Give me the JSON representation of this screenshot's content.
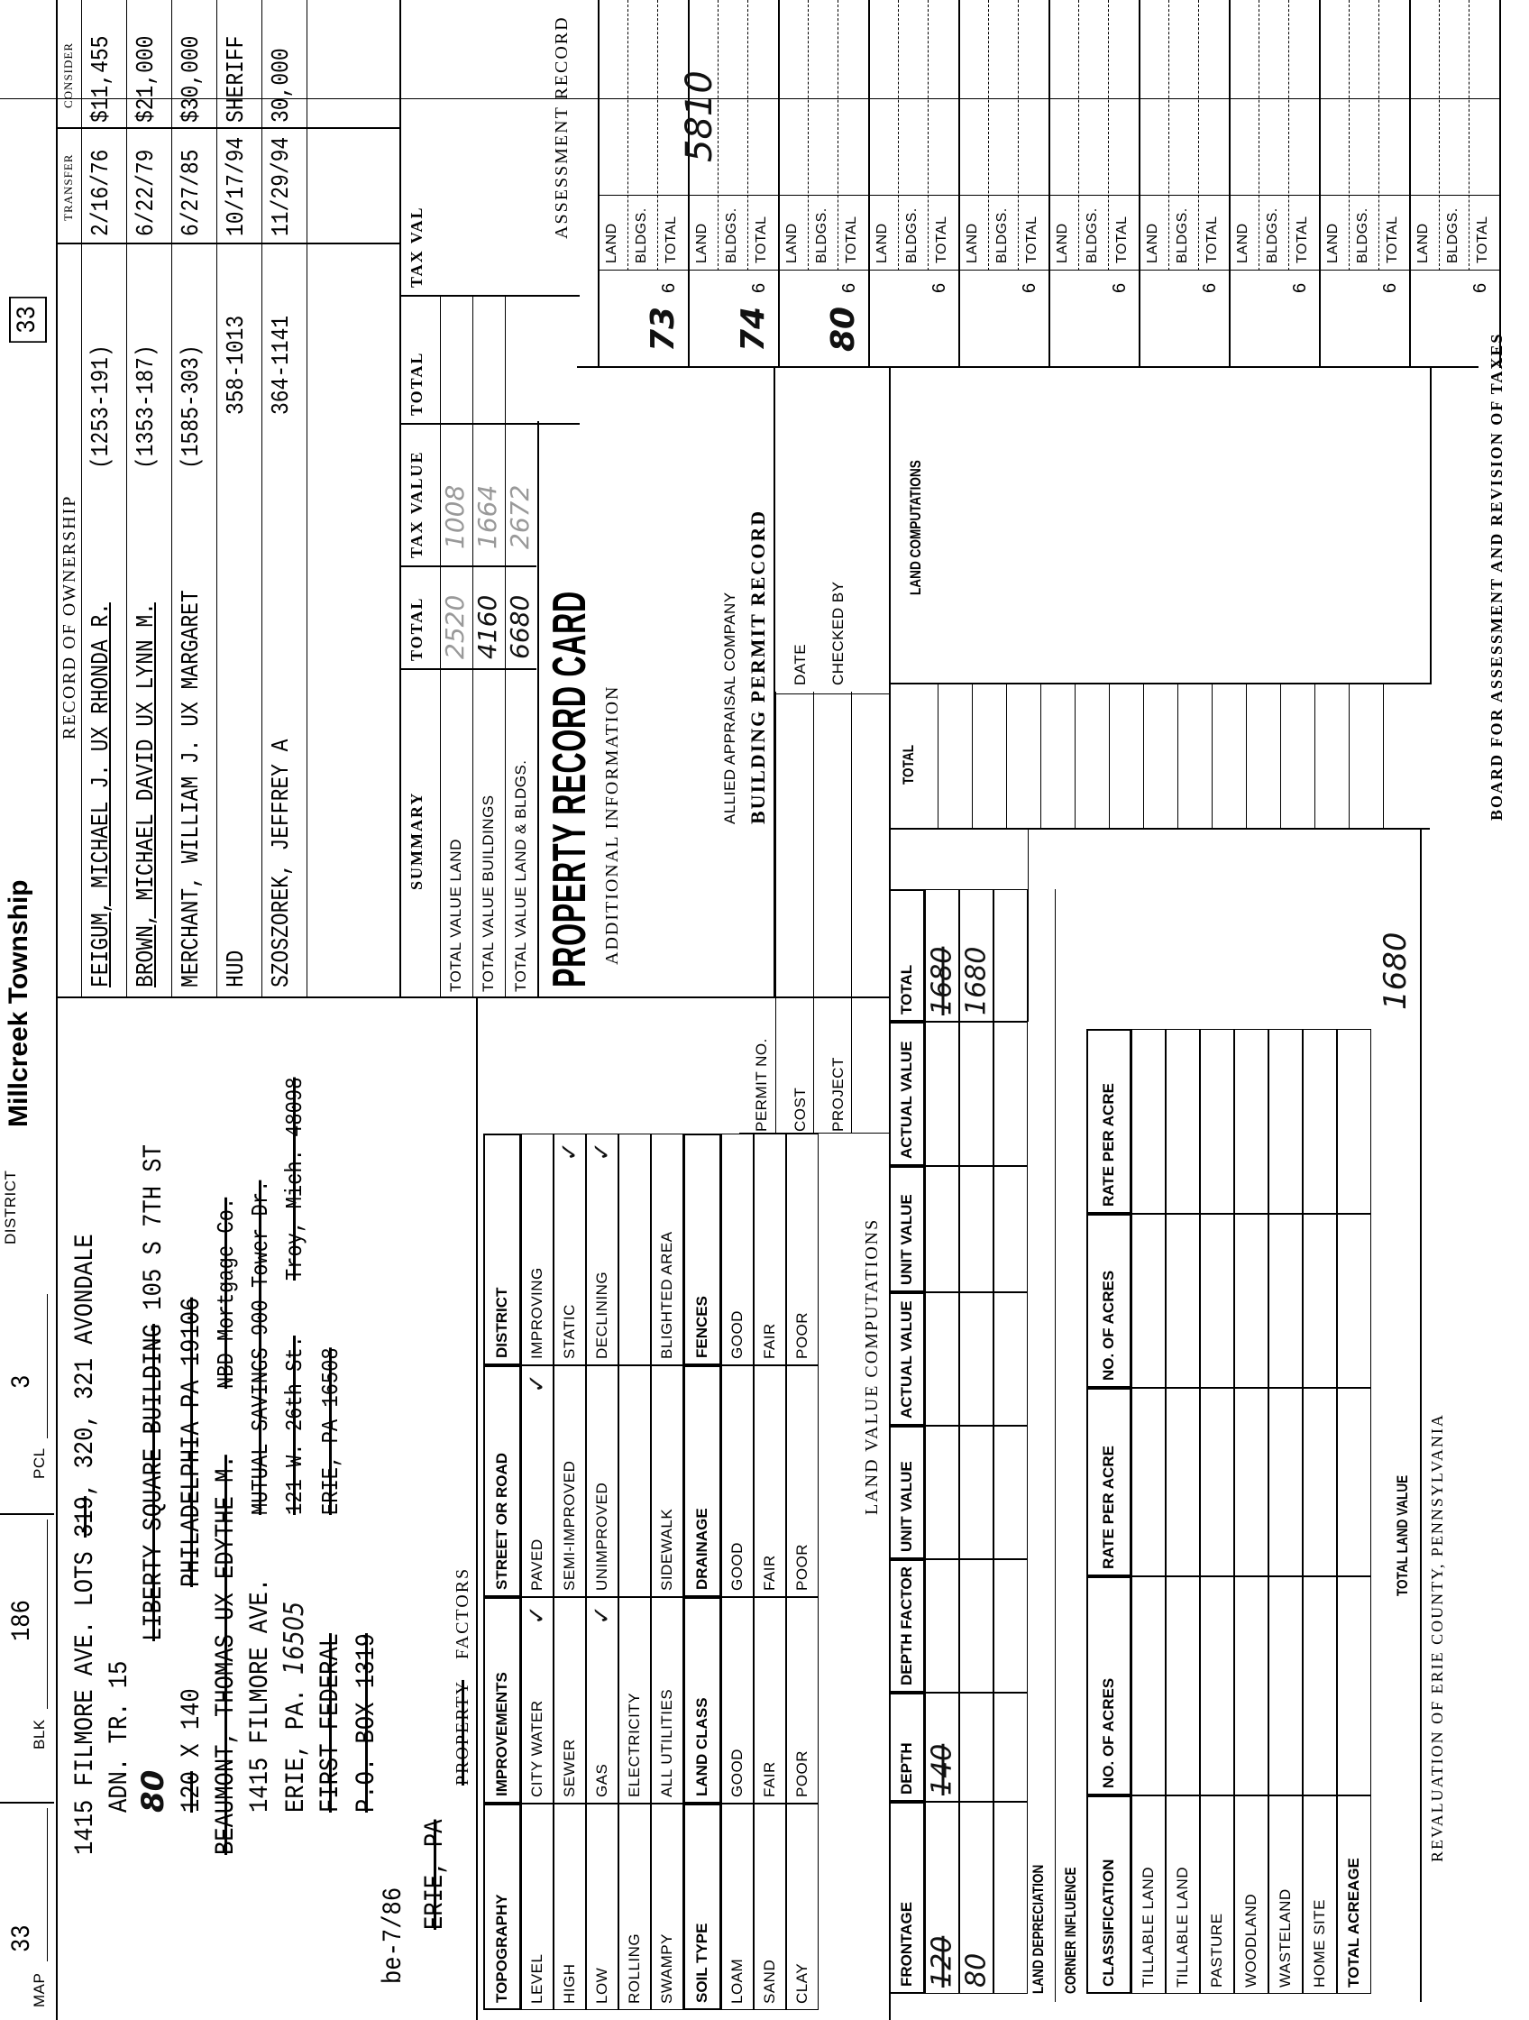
{
  "header": {
    "map_label": "MAP",
    "map": "33",
    "blk_label": "BLK",
    "blk": "186",
    "pcl_label": "PCL",
    "pcl": "3",
    "district_label": "DISTRICT",
    "district": "Millcreek Township",
    "box_number": "33"
  },
  "address": {
    "note": "be-7/86",
    "line1_a": "1415 FILMORE AVE. LOTS ",
    "line1_struck": "319",
    "line1_b": ", 320, 321 AVONDALE",
    "line2": "ADN. TR. 15",
    "line3_hand": "80",
    "line3_struck": "LIBERTY SQUARE BUILDING",
    "line3_b": " 105 S 7TH ST",
    "line4_struck": "120",
    "line4_b": " X 140",
    "line4_c": "PHILADELPHIA  PA  19106",
    "line5": "BEAUMONT, THOMAS UX EDYTHE M.",
    "line5_c": "NBD Mortgage Co.",
    "line6": "1415 FILMORE AVE.",
    "line6_c": "MUTUAL SAVINGS 900 Tower Dr.",
    "line7": "ERIE, PA.",
    "line7_hand": "16505",
    "line7_c": "121 W. 26th St.",
    "line7_d": "Troy, Mich. 48098",
    "line8": "FIRST FEDERAL",
    "line8_c": "ERIE, PA  16508",
    "line9": "P.O. BOX 1319",
    "line10": "ERIE, PA",
    "line10_b": "PROPERTY",
    "factors_label": "FACTORS"
  },
  "factors": {
    "headers": [
      "TOPOGRAPHY",
      "IMPROVEMENTS",
      "STREET OR ROAD",
      "DISTRICT"
    ],
    "rows": [
      [
        {
          "t": "LEVEL",
          "c": ""
        },
        {
          "t": "CITY WATER",
          "c": "✓"
        },
        {
          "t": "PAVED",
          "c": "✓"
        },
        {
          "t": "IMPROVING",
          "c": ""
        }
      ],
      [
        {
          "t": "HIGH",
          "c": ""
        },
        {
          "t": "SEWER",
          "c": ""
        },
        {
          "t": "SEMI-IMPROVED",
          "c": ""
        },
        {
          "t": "STATIC",
          "c": "✓"
        }
      ],
      [
        {
          "t": "LOW",
          "c": ""
        },
        {
          "t": "GAS",
          "c": "✓"
        },
        {
          "t": "UNIMPROVED",
          "c": ""
        },
        {
          "t": "DECLINING",
          "c": "✓"
        }
      ],
      [
        {
          "t": "ROLLING",
          "c": ""
        },
        {
          "t": "ELECTRICITY",
          "c": ""
        },
        {
          "t": "",
          "c": ""
        },
        {
          "t": "",
          "c": ""
        }
      ],
      [
        {
          "t": "SWAMPY",
          "c": ""
        },
        {
          "t": "ALL UTILITIES",
          "c": ""
        },
        {
          "t": "SIDEWALK",
          "c": ""
        },
        {
          "t": "BLIGHTED AREA",
          "c": ""
        }
      ]
    ],
    "headers2": [
      "SOIL TYPE",
      "LAND CLASS",
      "DRAINAGE",
      "FENCES"
    ],
    "rows2": [
      [
        {
          "t": "LOAM",
          "c": ""
        },
        {
          "t": "GOOD",
          "c": ""
        },
        {
          "t": "GOOD",
          "c": ""
        },
        {
          "t": "GOOD",
          "c": ""
        }
      ],
      [
        {
          "t": "SAND",
          "c": ""
        },
        {
          "t": "FAIR",
          "c": ""
        },
        {
          "t": "FAIR",
          "c": ""
        },
        {
          "t": "FAIR",
          "c": ""
        }
      ],
      [
        {
          "t": "CLAY",
          "c": ""
        },
        {
          "t": "POOR",
          "c": ""
        },
        {
          "t": "POOR",
          "c": ""
        },
        {
          "t": "POOR",
          "c": ""
        }
      ]
    ]
  },
  "permit": {
    "permit_no": "PERMIT NO.",
    "cost": "COST",
    "project": "PROJECT",
    "allied": "ALLIED APPRAISAL COMPANY",
    "title": "BUILDING  PERMIT  RECORD",
    "date": "DATE",
    "checked_by": "CHECKED BY"
  },
  "ownership": {
    "title": "RECORD  OF  OWNERSHIP",
    "transfer_label": "TRANSFER",
    "consideration_label": "CONSIDER",
    "rows": [
      {
        "name": "FEIGUM, MICHAEL J. UX RHONDA R.",
        "ref": "(1253-191)",
        "date": "2/16/76",
        "amount": "$11,455"
      },
      {
        "name": "BROWN, MICHAEL DAVID UX LYNN M.",
        "ref": "(1353-187)",
        "date": "6/22/79",
        "amount": "$21,000"
      },
      {
        "name": "MERCHANT, WILLIAM J. UX MARGARET",
        "ref": "(1585-303)",
        "date": "6/27/85",
        "amount": "$30,000"
      },
      {
        "name": "HUD",
        "ref": "358-1013",
        "date": "10/17/94",
        "amount": "SHERIFF"
      },
      {
        "name": "SZOSZOREK, JEFFREY A",
        "ref": "364-1141",
        "date": "11/29/94",
        "amount": "30,000"
      }
    ]
  },
  "summary": {
    "title": "SUMMARY",
    "total_label": "TOTAL",
    "tax_value_label": "TAX VALUE",
    "total_label2": "TOTAL",
    "tax_value_label2": "TAX VAL",
    "rows": [
      {
        "label": "TOTAL VALUE LAND",
        "total": "2520",
        "tax": "1008"
      },
      {
        "label": "TOTAL VALUE BUILDINGS",
        "total": "4160",
        "tax": "1664"
      },
      {
        "label": "TOTAL VALUE LAND & BLDGS.",
        "total": "6680",
        "tax": "2672"
      }
    ]
  },
  "card_title": "PROPERTY RECORD CARD",
  "additional_info": "ADDITIONAL  INFORMATION",
  "land_value": {
    "title": "LAND   VALUE   COMPUTATIONS",
    "headers": [
      "FRONTAGE",
      "DEPTH",
      "DEPTH FACTOR",
      "UNIT VALUE",
      "ACTUAL VALUE",
      "UNIT VALUE",
      "ACTUAL VALUE",
      "TOTAL"
    ],
    "rows": [
      [
        "120",
        "140",
        "",
        "",
        "",
        "",
        "",
        "1680"
      ],
      [
        "80",
        "",
        "",
        "",
        "",
        "",
        "",
        "1680"
      ],
      [
        "",
        "",
        "",
        "",
        "",
        "",
        "",
        ""
      ]
    ],
    "struck_first": true,
    "land_depreciation": "LAND DEPRECIATION",
    "corner_influence": "CORNER INFLUENCE",
    "class_headers": [
      "CLASSIFICATION",
      "NO. OF ACRES",
      "RATE PER ACRE",
      "NO. OF ACRES",
      "RATE PER ACRE"
    ],
    "classes": [
      "TILLABLE LAND",
      "TILLABLE LAND",
      "PASTURE",
      "WOODLAND",
      "WASTELAND",
      "HOME SITE",
      "TOTAL ACREAGE"
    ],
    "total_land_value_label": "TOTAL LAND VALUE",
    "total_land_value": "1680",
    "revaluation": "REVALUATION OF ERIE COUNTY, PENNSYLVANIA"
  },
  "total_column_label": "TOTAL",
  "land_computations": "LAND COMPUTATIONS",
  "assessment": {
    "title": "ASSESSMENT  RECORD",
    "sub_labels": [
      "LAND",
      "BLDGS.",
      "TOTAL"
    ],
    "year_prefix": "6",
    "groups": [
      {
        "year": "73",
        "values": [
          "",
          "",
          ""
        ]
      },
      {
        "year": "74",
        "values": [
          "5810",
          "",
          ""
        ]
      },
      {
        "year": "80",
        "values": [
          "",
          "",
          ""
        ]
      },
      {
        "year": "",
        "values": [
          "",
          "",
          ""
        ]
      },
      {
        "year": "",
        "values": [
          "",
          "",
          ""
        ]
      },
      {
        "year": "",
        "values": [
          "",
          "",
          ""
        ]
      },
      {
        "year": "",
        "values": [
          "",
          "",
          ""
        ]
      },
      {
        "year": "",
        "values": [
          "",
          "",
          ""
        ]
      },
      {
        "year": "",
        "values": [
          "",
          "",
          ""
        ]
      },
      {
        "year": "",
        "values": [
          "",
          "",
          ""
        ]
      }
    ]
  },
  "board": "BOARD FOR ASSESSMENT AND REVISION OF TAXES"
}
